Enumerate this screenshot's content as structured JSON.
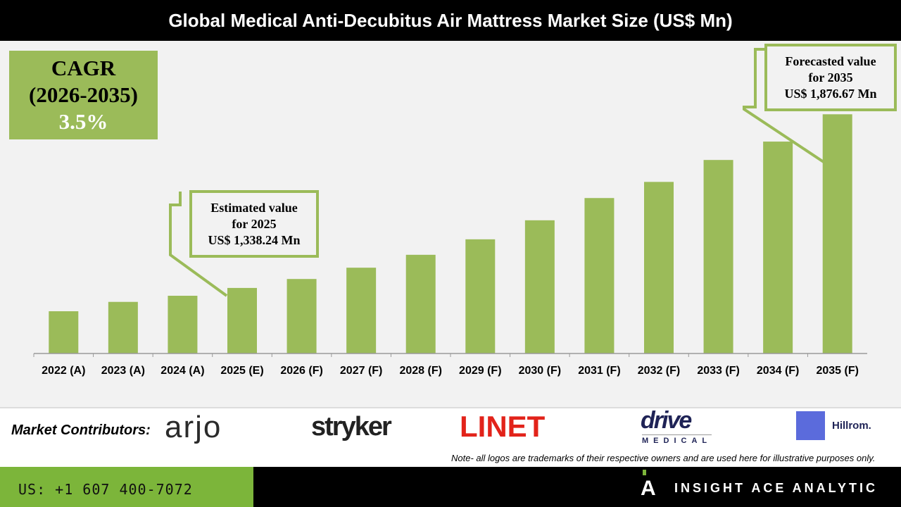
{
  "header": {
    "title": "Global Medical Anti-Decubitus Air Mattress Market Size (US$ Mn)"
  },
  "cagr": {
    "label": "CAGR",
    "period": "(2026-2035)",
    "value": "3.5%"
  },
  "callouts": {
    "estimated": {
      "line1": "Estimated value",
      "line2": "for 2025",
      "line3": "US$ 1,338.24 Mn"
    },
    "forecasted": {
      "line1": "Forecasted value",
      "line2": "for 2035",
      "line3": "US$ 1,876.67 Mn"
    }
  },
  "chart_data": {
    "type": "bar",
    "title": "Global Medical Anti-Decubitus Air Mattress Market Size (US$ Mn)",
    "categories": [
      "2022 (A)",
      "2023 (A)",
      "2024 (A)",
      "2025 (E)",
      "2026 (F)",
      "2027 (F)",
      "2028 (F)",
      "2029 (F)",
      "2030 (F)",
      "2031 (F)",
      "2032 (F)",
      "2033 (F)",
      "2034 (F)",
      "2035 (F)"
    ],
    "values": [
      1266,
      1295,
      1314,
      1338.24,
      1366,
      1401,
      1441,
      1489,
      1548,
      1617,
      1667,
      1735,
      1792,
      1876.67
    ],
    "ylim": [
      1135,
      2100
    ],
    "grid": false,
    "bar_color": "#9bbb59"
  },
  "contributors": {
    "label": "Market Contributors:",
    "logos": [
      "arjo",
      "stryker",
      "LINET",
      "drive",
      "MEDICAL",
      "Hillrom."
    ],
    "note": "Note- all logos are trademarks of their respective owners and are used here for illustrative purposes only."
  },
  "footer": {
    "phone": "US: +1 607 400-7072",
    "brand": "INSIGHT ACE ANALYTIC",
    "accent": "#7cb53a"
  }
}
